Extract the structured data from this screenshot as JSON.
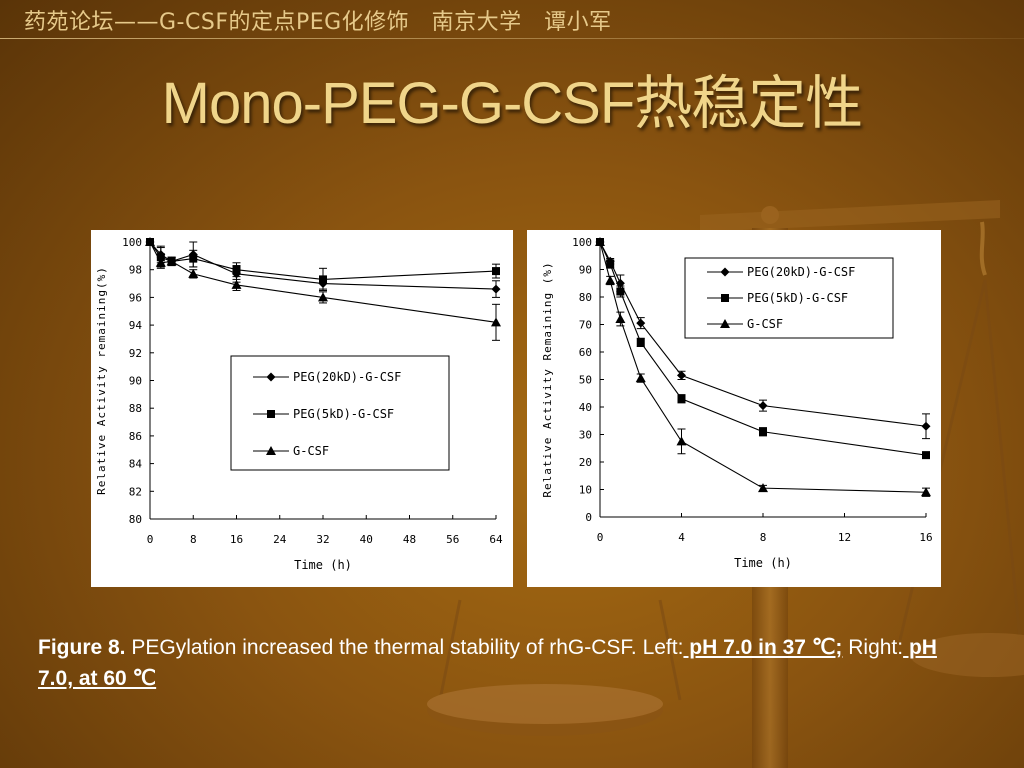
{
  "header": {
    "text": "药苑论坛——G-CSF的定点PEG化修饰   南京大学   谭小军"
  },
  "slide": {
    "title": "Mono-PEG-G-CSF热稳定性"
  },
  "caption": {
    "figure_label": "Figure 8.",
    "text": " PEGylation increased the thermal stability of rhG-CSF. Left:",
    "left_condition": " pH 7.0 in 37 ℃;",
    "right_prefix": " Right:",
    "right_condition": " pH 7.0, at 60 ℃"
  },
  "colors": {
    "title": "#f0d58a",
    "header": "#e6c98a",
    "caption": "#ffffff",
    "plot_ink": "#000000"
  },
  "chart_data": [
    {
      "type": "line",
      "xlabel": "Time (h)",
      "ylabel": "Relative Activity remaining(%)",
      "xlim": [
        0,
        64
      ],
      "ylim": [
        80,
        100
      ],
      "xticks": [
        0,
        8,
        16,
        24,
        32,
        40,
        48,
        56,
        64
      ],
      "yticks": [
        80,
        82,
        84,
        86,
        88,
        90,
        92,
        94,
        96,
        98,
        100
      ],
      "legend_position": "lower-middle",
      "grid": false,
      "series": [
        {
          "name": "PEG(20kD)-G-CSF",
          "marker": "diamond",
          "x": [
            0,
            2,
            4,
            8,
            16,
            32,
            64
          ],
          "y": [
            100,
            99.1,
            98.6,
            99.1,
            97.7,
            97.0,
            96.6
          ],
          "err": [
            0,
            0.6,
            0.3,
            0.9,
            0.6,
            0.4,
            0.6
          ]
        },
        {
          "name": "PEG(5kD)-G-CSF",
          "marker": "square",
          "x": [
            0,
            2,
            4,
            8,
            16,
            32,
            64
          ],
          "y": [
            100,
            98.9,
            98.6,
            98.8,
            98.0,
            97.3,
            97.9
          ],
          "err": [
            0,
            0.7,
            0.3,
            0.6,
            0.5,
            0.8,
            0.5
          ]
        },
        {
          "name": "G-CSF",
          "marker": "triangle",
          "x": [
            0,
            2,
            4,
            8,
            16,
            32,
            64
          ],
          "y": [
            100,
            98.5,
            98.6,
            97.7,
            96.9,
            96.0,
            94.2
          ],
          "err": [
            0,
            0.4,
            0.3,
            0.3,
            0.4,
            0.4,
            1.3
          ]
        }
      ]
    },
    {
      "type": "line",
      "xlabel": "Time (h)",
      "ylabel": "Relative Activity Remaining (%)",
      "xlim": [
        0,
        16
      ],
      "ylim": [
        0,
        100
      ],
      "xticks": [
        0,
        4,
        8,
        12,
        16
      ],
      "yticks": [
        0,
        10,
        20,
        30,
        40,
        50,
        60,
        70,
        80,
        90,
        100
      ],
      "legend_position": "top-right",
      "grid": false,
      "series": [
        {
          "name": "PEG(20kD)-G-CSF",
          "marker": "diamond",
          "x": [
            0,
            0.5,
            1,
            2,
            4,
            8,
            16
          ],
          "y": [
            100,
            93,
            85,
            70.5,
            51.5,
            40.5,
            33
          ],
          "err": [
            0,
            1,
            3,
            2,
            1.5,
            2,
            4.5
          ]
        },
        {
          "name": "PEG(5kD)-G-CSF",
          "marker": "square",
          "x": [
            0,
            0.5,
            1,
            2,
            4,
            8,
            16
          ],
          "y": [
            100,
            92,
            82,
            63.5,
            43,
            31,
            22.5
          ],
          "err": [
            0,
            1.5,
            2,
            1.5,
            1.5,
            1.5,
            1
          ]
        },
        {
          "name": "G-CSF",
          "marker": "triangle",
          "x": [
            0,
            0.5,
            1,
            2,
            4,
            8,
            16
          ],
          "y": [
            100,
            86,
            72,
            50.5,
            27.5,
            10.5,
            9
          ],
          "err": [
            0,
            1.5,
            2.5,
            1.5,
            4.5,
            1,
            1.5
          ]
        }
      ]
    }
  ]
}
